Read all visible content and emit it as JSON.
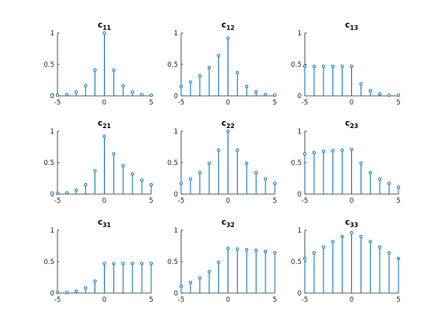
{
  "stem_color": "#0072BD",
  "chart_data": [
    {
      "type": "stem",
      "title": "c",
      "subscript": "11",
      "xlim": [
        -5,
        5
      ],
      "ylim": [
        0,
        1
      ],
      "xticks": [
        -5,
        0,
        5
      ],
      "yticks": [
        0,
        0.5,
        1
      ],
      "x": [
        -5,
        -4,
        -3,
        -2,
        -1,
        0,
        1,
        2,
        3,
        4,
        5
      ],
      "y": [
        0.01,
        0.02,
        0.06,
        0.16,
        0.41,
        1.0,
        0.41,
        0.16,
        0.06,
        0.02,
        0.01
      ]
    },
    {
      "type": "stem",
      "title": "c",
      "subscript": "12",
      "xlim": [
        -5,
        5
      ],
      "ylim": [
        0,
        1
      ],
      "xticks": [
        -5,
        0,
        5
      ],
      "yticks": [
        0,
        0.5,
        1
      ],
      "x": [
        -5,
        -4,
        -3,
        -2,
        -1,
        0,
        1,
        2,
        3,
        4,
        5
      ],
      "y": [
        0.15,
        0.22,
        0.32,
        0.45,
        0.64,
        0.92,
        0.37,
        0.15,
        0.06,
        0.02,
        0.01
      ]
    },
    {
      "type": "stem",
      "title": "c",
      "subscript": "13",
      "xlim": [
        -5,
        5
      ],
      "ylim": [
        0,
        1
      ],
      "xticks": [
        -5,
        0,
        5
      ],
      "yticks": [
        0,
        0.5,
        1
      ],
      "x": [
        -5,
        -4,
        -3,
        -2,
        -1,
        0,
        1,
        2,
        3,
        4,
        5
      ],
      "y": [
        0.47,
        0.47,
        0.47,
        0.47,
        0.47,
        0.47,
        0.19,
        0.08,
        0.03,
        0.01,
        0.01
      ]
    },
    {
      "type": "stem",
      "title": "c",
      "subscript": "21",
      "xlim": [
        -5,
        5
      ],
      "ylim": [
        0,
        1
      ],
      "xticks": [
        -5,
        0,
        5
      ],
      "yticks": [
        0,
        0.5,
        1
      ],
      "x": [
        -5,
        -4,
        -3,
        -2,
        -1,
        0,
        1,
        2,
        3,
        4,
        5
      ],
      "y": [
        0.01,
        0.02,
        0.06,
        0.15,
        0.37,
        0.92,
        0.64,
        0.45,
        0.32,
        0.22,
        0.15
      ]
    },
    {
      "type": "stem",
      "title": "c",
      "subscript": "22",
      "xlim": [
        -5,
        5
      ],
      "ylim": [
        0,
        1
      ],
      "xticks": [
        -5,
        0,
        5
      ],
      "yticks": [
        0,
        0.5,
        1
      ],
      "x": [
        -5,
        -4,
        -3,
        -2,
        -1,
        0,
        1,
        2,
        3,
        4,
        5
      ],
      "y": [
        0.17,
        0.24,
        0.34,
        0.49,
        0.7,
        1.0,
        0.7,
        0.49,
        0.34,
        0.24,
        0.17
      ]
    },
    {
      "type": "stem",
      "title": "c",
      "subscript": "23",
      "xlim": [
        -5,
        5
      ],
      "ylim": [
        0,
        1
      ],
      "xticks": [
        -5,
        0,
        5
      ],
      "yticks": [
        0,
        0.5,
        1
      ],
      "x": [
        -5,
        -4,
        -3,
        -2,
        -1,
        0,
        1,
        2,
        3,
        4,
        5
      ],
      "y": [
        0.64,
        0.66,
        0.68,
        0.69,
        0.7,
        0.71,
        0.49,
        0.34,
        0.24,
        0.17,
        0.11
      ]
    },
    {
      "type": "stem",
      "title": "c",
      "subscript": "31",
      "xlim": [
        -5,
        5
      ],
      "ylim": [
        0,
        1
      ],
      "xticks": [
        -5,
        0,
        5
      ],
      "yticks": [
        0,
        0.5,
        1
      ],
      "x": [
        -5,
        -4,
        -3,
        -2,
        -1,
        0,
        1,
        2,
        3,
        4,
        5
      ],
      "y": [
        0.01,
        0.01,
        0.03,
        0.08,
        0.19,
        0.47,
        0.47,
        0.47,
        0.47,
        0.47,
        0.47
      ]
    },
    {
      "type": "stem",
      "title": "c",
      "subscript": "32",
      "xlim": [
        -5,
        5
      ],
      "ylim": [
        0,
        1
      ],
      "xticks": [
        -5,
        0,
        5
      ],
      "yticks": [
        0,
        0.5,
        1
      ],
      "x": [
        -5,
        -4,
        -3,
        -2,
        -1,
        0,
        1,
        2,
        3,
        4,
        5
      ],
      "y": [
        0.11,
        0.17,
        0.24,
        0.34,
        0.49,
        0.71,
        0.7,
        0.69,
        0.68,
        0.66,
        0.64
      ]
    },
    {
      "type": "stem",
      "title": "c",
      "subscript": "33",
      "xlim": [
        -5,
        5
      ],
      "ylim": [
        0,
        1
      ],
      "xticks": [
        -5,
        0,
        5
      ],
      "yticks": [
        0,
        0.5,
        1
      ],
      "x": [
        -5,
        -4,
        -3,
        -2,
        -1,
        0,
        1,
        2,
        3,
        4,
        5
      ],
      "y": [
        0.55,
        0.64,
        0.73,
        0.82,
        0.9,
        0.96,
        0.9,
        0.82,
        0.73,
        0.64,
        0.55
      ]
    }
  ]
}
